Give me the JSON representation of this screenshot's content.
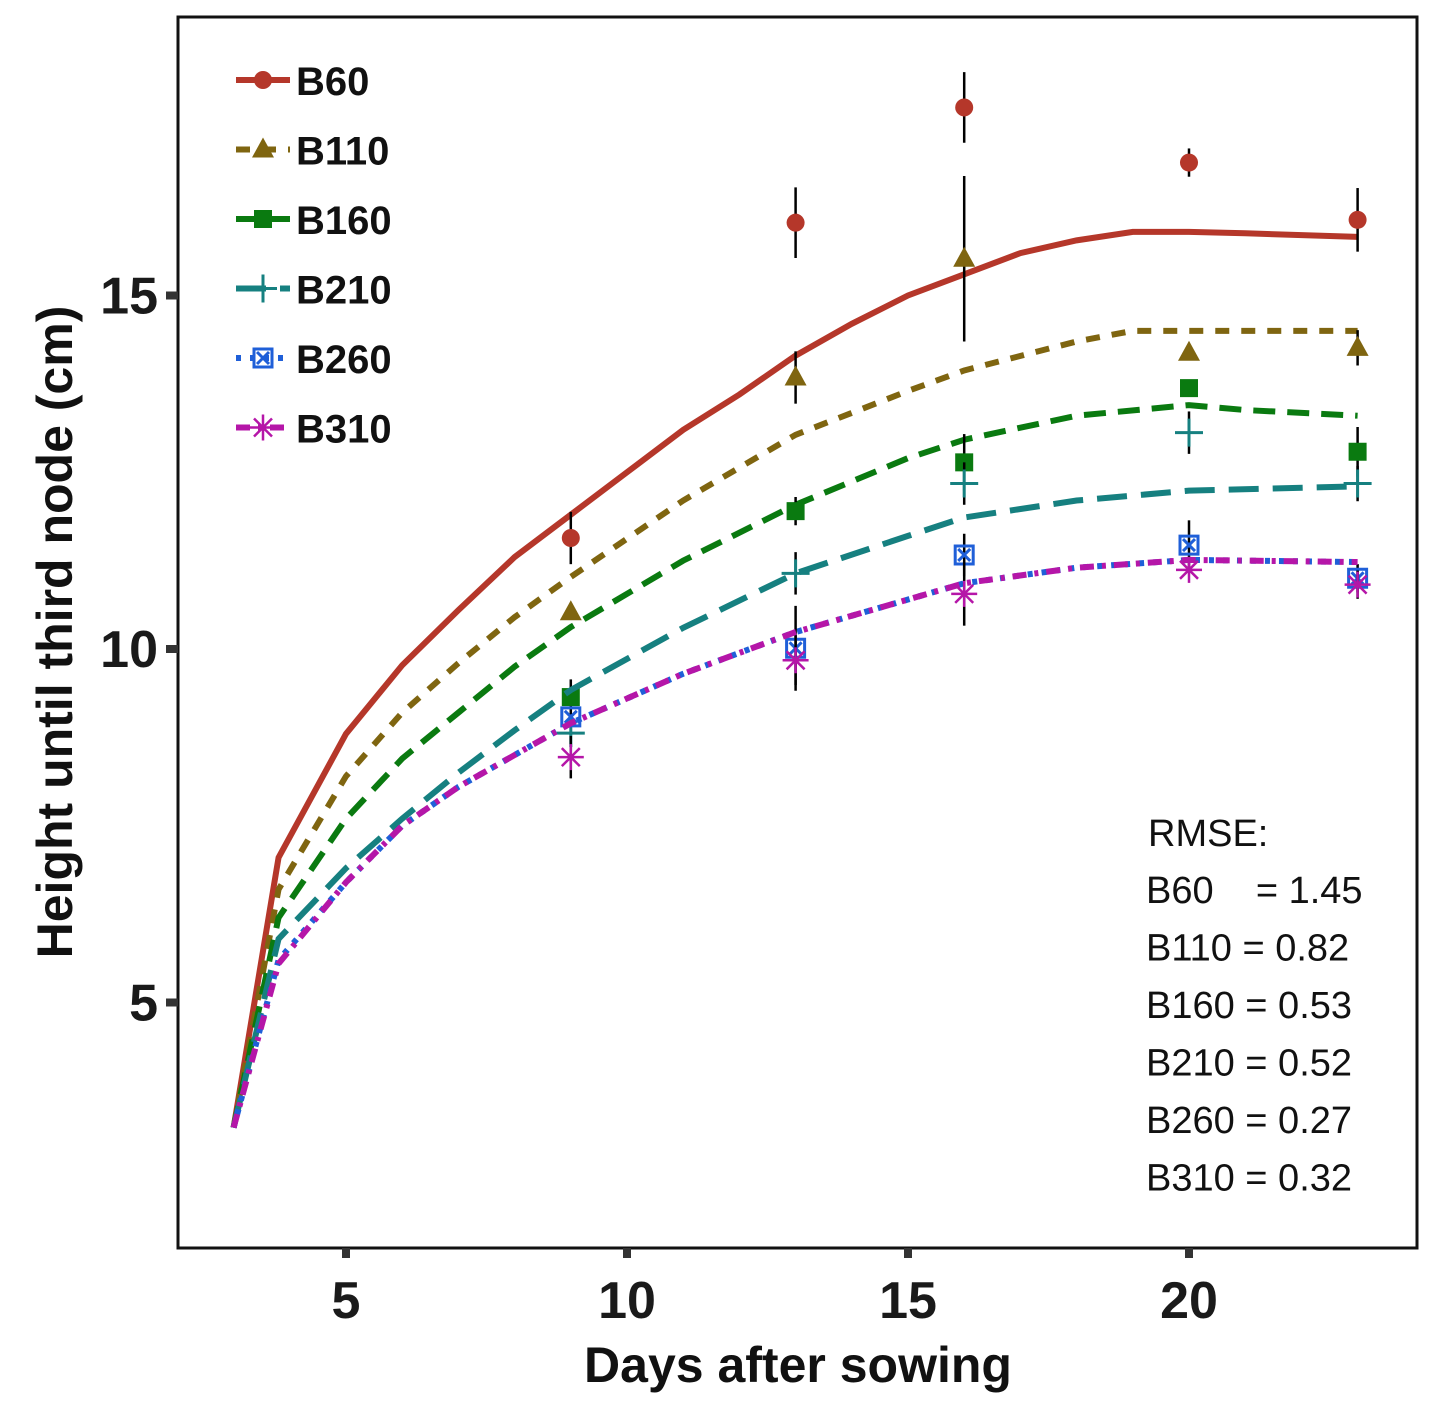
{
  "chart_data": {
    "type": "scatter",
    "title": "",
    "xlabel": "Days after sowing",
    "ylabel": "Height until third node (cm)",
    "xlim": [
      0,
      25
    ],
    "ylim": [
      1.52,
      18.93
    ],
    "xticks": [
      5,
      10,
      15,
      20
    ],
    "yticks": [
      5,
      10,
      15
    ],
    "grid": false,
    "legend_position": "top-left",
    "series": [
      {
        "name": "B60",
        "color": "#b5372a",
        "marker": "circle",
        "dash": "",
        "x": [
          9,
          13,
          16,
          20,
          23
        ],
        "y": [
          11.57,
          16.03,
          17.66,
          16.88,
          16.07
        ],
        "err": [
          0.37,
          0.5,
          0.5,
          0.2,
          0.45
        ],
        "fit": [
          [
            3,
            3.23
          ],
          [
            3.8,
            7.05
          ],
          [
            5,
            8.8
          ],
          [
            6,
            9.77
          ],
          [
            7,
            10.55
          ],
          [
            8,
            11.3
          ],
          [
            9,
            11.9
          ],
          [
            10,
            12.5
          ],
          [
            11,
            13.1
          ],
          [
            12,
            13.6
          ],
          [
            13,
            14.15
          ],
          [
            14,
            14.6
          ],
          [
            15,
            15.0
          ],
          [
            16,
            15.3
          ],
          [
            17,
            15.6
          ],
          [
            18,
            15.78
          ],
          [
            19,
            15.9
          ],
          [
            20,
            15.9
          ],
          [
            21,
            15.88
          ],
          [
            23,
            15.83
          ]
        ]
      },
      {
        "name": "B110",
        "color": "#7f6510",
        "marker": "triangle",
        "dash": "14 12",
        "x": [
          9,
          13,
          16,
          20,
          23
        ],
        "y": [
          10.52,
          13.84,
          15.52,
          14.19,
          14.26
        ],
        "err": [
          0,
          0.37,
          1.17,
          0,
          0.25
        ],
        "fit": [
          [
            3,
            3.23
          ],
          [
            3.8,
            6.6
          ],
          [
            5,
            8.2
          ],
          [
            6,
            9.1
          ],
          [
            7,
            9.8
          ],
          [
            8,
            10.45
          ],
          [
            9,
            11.02
          ],
          [
            11,
            12.1
          ],
          [
            13,
            13.03
          ],
          [
            15,
            13.65
          ],
          [
            16,
            13.94
          ],
          [
            18,
            14.35
          ],
          [
            19,
            14.5
          ],
          [
            20,
            14.5
          ],
          [
            23,
            14.5
          ]
        ]
      },
      {
        "name": "B160",
        "color": "#0a7a10",
        "marker": "square",
        "dash": "22 12",
        "x": [
          9,
          13,
          16,
          20,
          23
        ],
        "y": [
          9.32,
          11.95,
          12.64,
          13.69,
          12.79
        ],
        "err": [
          0.25,
          0.2,
          0.4,
          0,
          0.35
        ],
        "fit": [
          [
            3,
            3.23
          ],
          [
            3.8,
            6.2
          ],
          [
            5,
            7.6
          ],
          [
            6,
            8.45
          ],
          [
            7,
            9.1
          ],
          [
            8,
            9.75
          ],
          [
            9,
            10.31
          ],
          [
            11,
            11.25
          ],
          [
            13,
            12.04
          ],
          [
            15,
            12.7
          ],
          [
            16,
            12.96
          ],
          [
            18,
            13.3
          ],
          [
            20,
            13.45
          ],
          [
            21,
            13.38
          ],
          [
            23,
            13.3
          ]
        ]
      },
      {
        "name": "B210",
        "color": "#168080",
        "marker": "plus",
        "dash": "30 14",
        "x": [
          9,
          13,
          16,
          20,
          23
        ],
        "y": [
          8.81,
          11.07,
          12.34,
          13.06,
          12.34
        ],
        "err": [
          0,
          0.3,
          0.3,
          0.3,
          0.25
        ],
        "fit": [
          [
            3,
            3.23
          ],
          [
            3.8,
            5.9
          ],
          [
            5,
            6.9
          ],
          [
            6,
            7.6
          ],
          [
            7,
            8.25
          ],
          [
            8,
            8.85
          ],
          [
            9,
            9.42
          ],
          [
            11,
            10.3
          ],
          [
            13,
            11.07
          ],
          [
            15,
            11.6
          ],
          [
            16,
            11.86
          ],
          [
            18,
            12.1
          ],
          [
            20,
            12.24
          ],
          [
            23,
            12.3
          ]
        ]
      },
      {
        "name": "B260",
        "color": "#1f5fd8",
        "marker": "square-x",
        "dash": "5 9",
        "x": [
          9,
          13,
          16,
          20,
          23
        ],
        "y": [
          9.04,
          10.01,
          11.33,
          11.47,
          11.0
        ],
        "err": [
          0,
          0.6,
          0.3,
          0.35,
          0.2
        ],
        "fit": [
          [
            3,
            3.23
          ],
          [
            3.8,
            5.6
          ],
          [
            5,
            6.7
          ],
          [
            6,
            7.5
          ],
          [
            7,
            8.05
          ],
          [
            8,
            8.5
          ],
          [
            9,
            8.95
          ],
          [
            11,
            9.65
          ],
          [
            13,
            10.24
          ],
          [
            15,
            10.7
          ],
          [
            16,
            10.93
          ],
          [
            18,
            11.15
          ],
          [
            20,
            11.26
          ],
          [
            23,
            11.23
          ]
        ]
      },
      {
        "name": "B310",
        "color": "#b516a8",
        "marker": "asterisk",
        "dash": "14 8 4 8",
        "x": [
          9,
          13,
          16,
          20,
          23
        ],
        "y": [
          8.47,
          9.84,
          10.78,
          11.12,
          10.91
        ],
        "err": [
          0.3,
          0.35,
          0.45,
          0,
          0.2
        ],
        "fit": [
          [
            3,
            3.23
          ],
          [
            3.8,
            5.55
          ],
          [
            5,
            6.7
          ],
          [
            6,
            7.5
          ],
          [
            7,
            8.05
          ],
          [
            8,
            8.5
          ],
          [
            9,
            8.95
          ],
          [
            11,
            9.65
          ],
          [
            13,
            10.24
          ],
          [
            15,
            10.7
          ],
          [
            16,
            10.93
          ],
          [
            18,
            11.15
          ],
          [
            20,
            11.26
          ],
          [
            23,
            11.23
          ]
        ]
      }
    ],
    "annotation": {
      "title": "RMSE:",
      "lines": [
        "B60    = 1.45",
        "B110 = 0.82",
        "B160 = 0.53",
        "B210 = 0.52",
        "B260 = 0.27",
        "B310 = 0.32"
      ]
    }
  }
}
